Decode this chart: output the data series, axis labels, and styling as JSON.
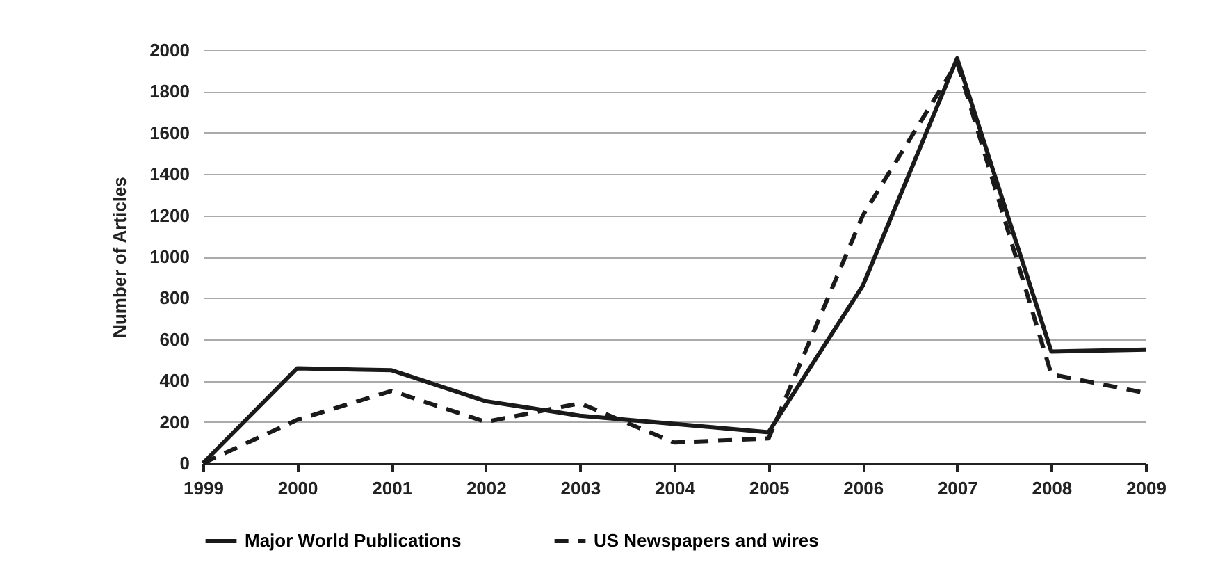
{
  "chart_data": {
    "type": "line",
    "ylabel": "Number of Articles",
    "categories": [
      "1999",
      "2000",
      "2001",
      "2002",
      "2003",
      "2004",
      "2005",
      "2006",
      "2007",
      "2008",
      "2009"
    ],
    "series": [
      {
        "name": "Major World Publications",
        "color": "#1a1a1a",
        "line_style": "solid",
        "values": [
          0,
          460,
          450,
          300,
          230,
          190,
          150,
          860,
          1960,
          540,
          550
        ]
      },
      {
        "name": "US Newspapers and wires",
        "color": "#1a1a1a",
        "line_style": "dashed",
        "values": [
          0,
          210,
          350,
          200,
          290,
          100,
          120,
          1200,
          1940,
          430,
          340
        ]
      }
    ],
    "ylim": [
      0,
      2000
    ],
    "yticks": [
      0,
      200,
      400,
      600,
      800,
      1000,
      1200,
      1400,
      1600,
      1800,
      2000
    ],
    "grid": "y",
    "legend": "bottom",
    "marker": "none"
  }
}
